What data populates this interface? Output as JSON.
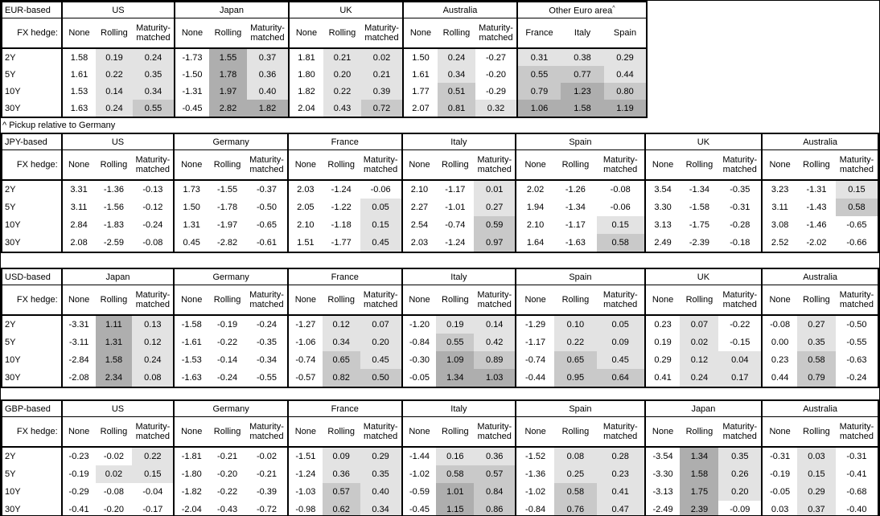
{
  "note": "^ Pickup relative to Germany",
  "colors": {
    "shade_none": "#ffffff",
    "shade_low": "#e3e3e3",
    "shade_mid": "#c9c9c9",
    "shade_high": "#aeaeae",
    "border": "#000000"
  },
  "shade_thresholds": [
    0,
    0.5,
    1.0
  ],
  "chart_data": [
    {
      "type": "table",
      "title": "EUR-based",
      "fx_hedge_label": "FX hedge:",
      "row_labels": [
        "2Y",
        "5Y",
        "10Y",
        "30Y"
      ],
      "groups": [
        {
          "name": "US",
          "sub_columns": [
            "None",
            "Rolling",
            "Maturity-matched"
          ],
          "values": [
            [
              "1.58",
              "0.19",
              "0.24"
            ],
            [
              "1.61",
              "0.22",
              "0.35"
            ],
            [
              "1.53",
              "0.14",
              "0.34"
            ],
            [
              "1.63",
              "0.24",
              "0.55"
            ]
          ]
        },
        {
          "name": "Japan",
          "sub_columns": [
            "None",
            "Rolling",
            "Maturity-matched"
          ],
          "values": [
            [
              "-1.73",
              "1.55",
              "0.37"
            ],
            [
              "-1.50",
              "1.78",
              "0.36"
            ],
            [
              "-1.31",
              "1.97",
              "0.40"
            ],
            [
              "-0.45",
              "2.82",
              "1.82"
            ]
          ]
        },
        {
          "name": "UK",
          "sub_columns": [
            "None",
            "Rolling",
            "Maturity-matched"
          ],
          "values": [
            [
              "1.81",
              "0.21",
              "0.02"
            ],
            [
              "1.80",
              "0.20",
              "0.21"
            ],
            [
              "1.82",
              "0.22",
              "0.39"
            ],
            [
              "2.04",
              "0.43",
              "0.72"
            ]
          ]
        },
        {
          "name": "Australia",
          "sub_columns": [
            "None",
            "Rolling",
            "Maturity-matched"
          ],
          "values": [
            [
              "1.50",
              "0.24",
              "-0.27"
            ],
            [
              "1.61",
              "0.34",
              "-0.20"
            ],
            [
              "1.77",
              "0.51",
              "-0.29"
            ],
            [
              "2.07",
              "0.81",
              "0.32"
            ]
          ]
        },
        {
          "name": "Other Euro area",
          "superscript": "^",
          "sub_columns": [
            "France",
            "Italy",
            "Spain"
          ],
          "values": [
            [
              "0.31",
              "0.38",
              "0.29"
            ],
            [
              "0.55",
              "0.77",
              "0.44"
            ],
            [
              "0.79",
              "1.23",
              "0.80"
            ],
            [
              "1.06",
              "1.58",
              "1.19"
            ]
          ]
        }
      ]
    },
    {
      "type": "table",
      "title": "JPY-based",
      "fx_hedge_label": "FX hedge:",
      "row_labels": [
        "2Y",
        "5Y",
        "10Y",
        "30Y"
      ],
      "groups": [
        {
          "name": "US",
          "sub_columns": [
            "None",
            "Rolling",
            "Maturity-matched"
          ],
          "values": [
            [
              "3.31",
              "-1.36",
              "-0.13"
            ],
            [
              "3.11",
              "-1.56",
              "-0.12"
            ],
            [
              "2.84",
              "-1.83",
              "-0.24"
            ],
            [
              "2.08",
              "-2.59",
              "-0.08"
            ]
          ]
        },
        {
          "name": "Germany",
          "sub_columns": [
            "None",
            "Rolling",
            "Maturity-matched"
          ],
          "values": [
            [
              "1.73",
              "-1.55",
              "-0.37"
            ],
            [
              "1.50",
              "-1.78",
              "-0.50"
            ],
            [
              "1.31",
              "-1.97",
              "-0.65"
            ],
            [
              "0.45",
              "-2.82",
              "-0.61"
            ]
          ]
        },
        {
          "name": "France",
          "sub_columns": [
            "None",
            "Rolling",
            "Maturity-matched"
          ],
          "values": [
            [
              "2.03",
              "-1.24",
              "-0.06"
            ],
            [
              "2.05",
              "-1.22",
              "0.05"
            ],
            [
              "2.10",
              "-1.18",
              "0.15"
            ],
            [
              "1.51",
              "-1.77",
              "0.45"
            ]
          ]
        },
        {
          "name": "Italy",
          "sub_columns": [
            "None",
            "Rolling",
            "Maturity-matched"
          ],
          "values": [
            [
              "2.10",
              "-1.17",
              "0.01"
            ],
            [
              "2.27",
              "-1.01",
              "0.27"
            ],
            [
              "2.54",
              "-0.74",
              "0.59"
            ],
            [
              "2.03",
              "-1.24",
              "0.97"
            ]
          ]
        },
        {
          "name": "Spain",
          "sub_columns": [
            "None",
            "Rolling",
            "Maturity-matched"
          ],
          "values": [
            [
              "2.02",
              "-1.26",
              "-0.08"
            ],
            [
              "1.94",
              "-1.34",
              "-0.06"
            ],
            [
              "2.10",
              "-1.17",
              "0.15"
            ],
            [
              "1.64",
              "-1.63",
              "0.58"
            ]
          ]
        },
        {
          "name": "UK",
          "sub_columns": [
            "None",
            "Rolling",
            "Maturity-matched"
          ],
          "values": [
            [
              "3.54",
              "-1.34",
              "-0.35"
            ],
            [
              "3.30",
              "-1.58",
              "-0.31"
            ],
            [
              "3.13",
              "-1.75",
              "-0.28"
            ],
            [
              "2.49",
              "-2.39",
              "-0.18"
            ]
          ]
        },
        {
          "name": "Australia",
          "sub_columns": [
            "None",
            "Rolling",
            "Maturity-matched"
          ],
          "values": [
            [
              "3.23",
              "-1.31",
              "0.15"
            ],
            [
              "3.11",
              "-1.43",
              "0.58"
            ],
            [
              "3.08",
              "-1.46",
              "-0.65"
            ],
            [
              "2.52",
              "-2.02",
              "-0.66"
            ]
          ]
        }
      ]
    },
    {
      "type": "table",
      "title": "USD-based",
      "fx_hedge_label": "FX hedge:",
      "row_labels": [
        "2Y",
        "5Y",
        "10Y",
        "30Y"
      ],
      "groups": [
        {
          "name": "Japan",
          "sub_columns": [
            "None",
            "Rolling",
            "Maturity-matched"
          ],
          "values": [
            [
              "-3.31",
              "1.11",
              "0.13"
            ],
            [
              "-3.11",
              "1.31",
              "0.12"
            ],
            [
              "-2.84",
              "1.58",
              "0.24"
            ],
            [
              "-2.08",
              "2.34",
              "0.08"
            ]
          ]
        },
        {
          "name": "Germany",
          "sub_columns": [
            "None",
            "Rolling",
            "Maturity-matched"
          ],
          "values": [
            [
              "-1.58",
              "-0.19",
              "-0.24"
            ],
            [
              "-1.61",
              "-0.22",
              "-0.35"
            ],
            [
              "-1.53",
              "-0.14",
              "-0.34"
            ],
            [
              "-1.63",
              "-0.24",
              "-0.55"
            ]
          ]
        },
        {
          "name": "France",
          "sub_columns": [
            "None",
            "Rolling",
            "Maturity-matched"
          ],
          "values": [
            [
              "-1.27",
              "0.12",
              "0.07"
            ],
            [
              "-1.06",
              "0.34",
              "0.20"
            ],
            [
              "-0.74",
              "0.65",
              "0.45"
            ],
            [
              "-0.57",
              "0.82",
              "0.50"
            ]
          ]
        },
        {
          "name": "Italy",
          "sub_columns": [
            "None",
            "Rolling",
            "Maturity-matched"
          ],
          "values": [
            [
              "-1.20",
              "0.19",
              "0.14"
            ],
            [
              "-0.84",
              "0.55",
              "0.42"
            ],
            [
              "-0.30",
              "1.09",
              "0.89"
            ],
            [
              "-0.05",
              "1.34",
              "1.03"
            ]
          ]
        },
        {
          "name": "Spain",
          "sub_columns": [
            "None",
            "Rolling",
            "Maturity-matched"
          ],
          "values": [
            [
              "-1.29",
              "0.10",
              "0.05"
            ],
            [
              "-1.17",
              "0.22",
              "0.09"
            ],
            [
              "-0.74",
              "0.65",
              "0.45"
            ],
            [
              "-0.44",
              "0.95",
              "0.64"
            ]
          ]
        },
        {
          "name": "UK",
          "sub_columns": [
            "None",
            "Rolling",
            "Maturity-matched"
          ],
          "values": [
            [
              "0.23",
              "0.07",
              "-0.22"
            ],
            [
              "0.19",
              "0.02",
              "-0.15"
            ],
            [
              "0.29",
              "0.12",
              "0.04"
            ],
            [
              "0.41",
              "0.24",
              "0.17"
            ]
          ]
        },
        {
          "name": "Australia",
          "sub_columns": [
            "None",
            "Rolling",
            "Maturity-matched"
          ],
          "values": [
            [
              "-0.08",
              "0.27",
              "-0.50"
            ],
            [
              "0.00",
              "0.35",
              "-0.55"
            ],
            [
              "0.23",
              "0.58",
              "-0.63"
            ],
            [
              "0.44",
              "0.79",
              "-0.24"
            ]
          ]
        }
      ]
    },
    {
      "type": "table",
      "title": "GBP-based",
      "fx_hedge_label": "FX hedge:",
      "row_labels": [
        "2Y",
        "5Y",
        "10Y",
        "30Y"
      ],
      "groups": [
        {
          "name": "US",
          "sub_columns": [
            "None",
            "Rolling",
            "Maturity-matched"
          ],
          "values": [
            [
              "-0.23",
              "-0.02",
              "0.22"
            ],
            [
              "-0.19",
              "0.02",
              "0.15"
            ],
            [
              "-0.29",
              "-0.08",
              "-0.04"
            ],
            [
              "-0.41",
              "-0.20",
              "-0.17"
            ]
          ]
        },
        {
          "name": "Germany",
          "sub_columns": [
            "None",
            "Rolling",
            "Maturity-matched"
          ],
          "values": [
            [
              "-1.81",
              "-0.21",
              "-0.02"
            ],
            [
              "-1.80",
              "-0.20",
              "-0.21"
            ],
            [
              "-1.82",
              "-0.22",
              "-0.39"
            ],
            [
              "-2.04",
              "-0.43",
              "-0.72"
            ]
          ]
        },
        {
          "name": "France",
          "sub_columns": [
            "None",
            "Rolling",
            "Maturity-matched"
          ],
          "values": [
            [
              "-1.51",
              "0.09",
              "0.29"
            ],
            [
              "-1.24",
              "0.36",
              "0.35"
            ],
            [
              "-1.03",
              "0.57",
              "0.40"
            ],
            [
              "-0.98",
              "0.62",
              "0.34"
            ]
          ]
        },
        {
          "name": "Italy",
          "sub_columns": [
            "None",
            "Rolling",
            "Maturity-matched"
          ],
          "values": [
            [
              "-1.44",
              "0.16",
              "0.36"
            ],
            [
              "-1.02",
              "0.58",
              "0.57"
            ],
            [
              "-0.59",
              "1.01",
              "0.84"
            ],
            [
              "-0.45",
              "1.15",
              "0.86"
            ]
          ]
        },
        {
          "name": "Spain",
          "sub_columns": [
            "None",
            "Rolling",
            "Maturity-matched"
          ],
          "values": [
            [
              "-1.52",
              "0.08",
              "0.28"
            ],
            [
              "-1.36",
              "0.25",
              "0.23"
            ],
            [
              "-1.02",
              "0.58",
              "0.41"
            ],
            [
              "-0.84",
              "0.76",
              "0.47"
            ]
          ]
        },
        {
          "name": "Japan",
          "sub_columns": [
            "None",
            "Rolling",
            "Maturity-matched"
          ],
          "values": [
            [
              "-3.54",
              "1.34",
              "0.35"
            ],
            [
              "-3.30",
              "1.58",
              "0.26"
            ],
            [
              "-3.13",
              "1.75",
              "0.20"
            ],
            [
              "-2.49",
              "2.39",
              "-0.09"
            ]
          ]
        },
        {
          "name": "Australia",
          "sub_columns": [
            "None",
            "Rolling",
            "Maturity-matched"
          ],
          "values": [
            [
              "-0.31",
              "0.03",
              "-0.31"
            ],
            [
              "-0.19",
              "0.15",
              "-0.41"
            ],
            [
              "-0.05",
              "0.29",
              "-0.68"
            ],
            [
              "0.03",
              "0.37",
              "-0.40"
            ]
          ]
        }
      ]
    }
  ]
}
